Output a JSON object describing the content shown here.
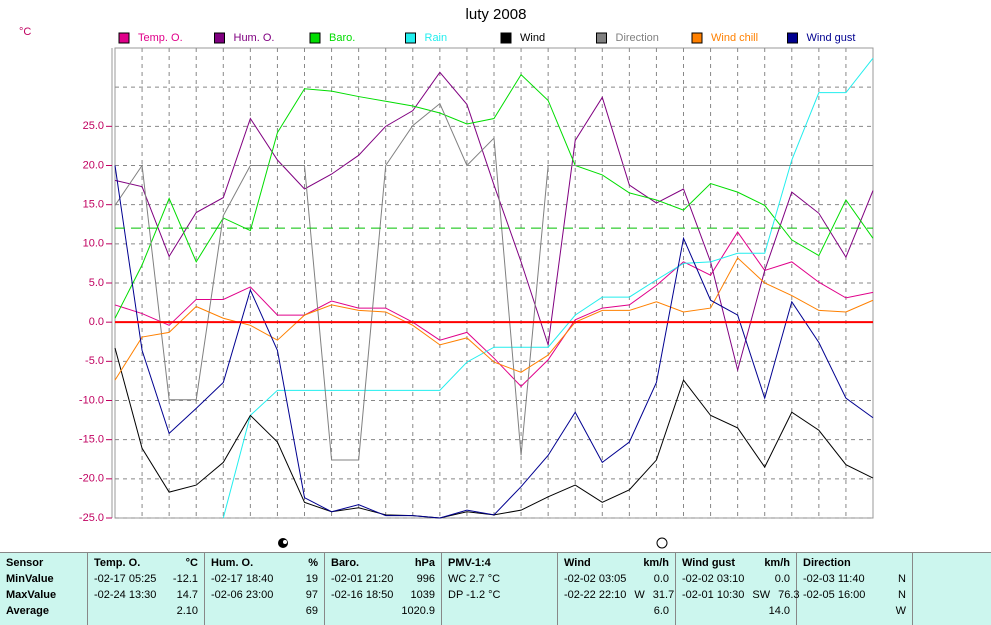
{
  "chart_data": {
    "type": "line",
    "title": "luty 2008",
    "y_unit": "°C",
    "categories": [
      null,
      null,
      null,
      null,
      null,
      null,
      null,
      null,
      null,
      null,
      null,
      null,
      null,
      null,
      null,
      null,
      null,
      null,
      null,
      null,
      null,
      null,
      null,
      null,
      null,
      null,
      null,
      null,
      null
    ],
    "ylim": [
      -25,
      35
    ],
    "yticks": [
      {
        "value": -25,
        "label": "-25.0"
      },
      {
        "value": -20,
        "label": "-20.0"
      },
      {
        "value": -15,
        "label": "-15.0"
      },
      {
        "value": -10,
        "label": "-10.0"
      },
      {
        "value": -5,
        "label": "-5.0"
      },
      {
        "value": 0,
        "label": "0.0"
      },
      {
        "value": 5,
        "label": "5.0"
      },
      {
        "value": 10,
        "label": "10.0"
      },
      {
        "value": 15,
        "label": "15.0"
      },
      {
        "value": 20,
        "label": "20.0"
      },
      {
        "value": 25,
        "label": "25.0"
      }
    ],
    "ygrid": [
      30
    ],
    "grid": true,
    "reference_lines": [
      {
        "value": 0,
        "color": "#ff0000",
        "style": "solid"
      },
      {
        "value": 12,
        "color": "#00c000",
        "style": "dashed"
      }
    ],
    "series": [
      {
        "name": "Temp. O.",
        "color": "#e0008a",
        "values": [
          2.2,
          1.1,
          -0.4,
          2.9,
          2.9,
          4.5,
          0.9,
          0.9,
          2.7,
          1.8,
          1.8,
          0.0,
          -2.3,
          -1.3,
          -4.6,
          -8.2,
          -4.8,
          0.3,
          1.8,
          2.2,
          4.7,
          7.7,
          6.0,
          11.5,
          6.6,
          7.7,
          5.1,
          3.1,
          3.8
        ]
      },
      {
        "name": "Hum. O.",
        "color": "#800080",
        "values": [
          18.1,
          17.3,
          8.4,
          14.0,
          15.9,
          26.0,
          20.7,
          17.0,
          18.9,
          21.3,
          25.0,
          27.0,
          31.9,
          27.8,
          17.5,
          7.7,
          -2.9,
          23.2,
          28.7,
          17.5,
          15.2,
          17.0,
          7.7,
          -6.1,
          6.6,
          16.6,
          13.9,
          8.3,
          16.8
        ]
      },
      {
        "name": "Baro.",
        "color": "#00dd00",
        "values": [
          0.5,
          7.3,
          15.8,
          7.7,
          13.3,
          11.7,
          24.2,
          29.8,
          29.5,
          28.8,
          28.2,
          27.6,
          26.7,
          25.3,
          26.0,
          31.6,
          28.3,
          20.0,
          18.8,
          16.5,
          15.6,
          14.3,
          17.7,
          16.6,
          14.9,
          10.5,
          8.5,
          15.6,
          10.7
        ]
      },
      {
        "name": "Rain",
        "color": "#22eeee",
        "values": [
          null,
          null,
          null,
          null,
          -25,
          -11.9,
          -8.7,
          -8.7,
          -8.7,
          -8.7,
          -8.7,
          -8.7,
          -8.7,
          -5.1,
          -3.2,
          -3.2,
          -3.2,
          0.9,
          3.2,
          3.2,
          5.4,
          7.5,
          7.7,
          8.8,
          8.8,
          20.7,
          29.3,
          29.3,
          33.7
        ]
      },
      {
        "name": "Wind",
        "color": "#000000",
        "values": [
          -3.3,
          -16.1,
          -21.7,
          -20.8,
          -17.9,
          -11.9,
          -15.3,
          -23.0,
          -24.2,
          -23.7,
          -24.6,
          -24.7,
          -25.0,
          -24.2,
          -24.6,
          -24.0,
          -22.3,
          -20.8,
          -23.0,
          -21.4,
          -17.6,
          -7.4,
          -11.9,
          -13.5,
          -18.5,
          -11.5,
          -13.8,
          -18.2,
          -19.9
        ]
      },
      {
        "name": "Direction",
        "color": "#808080",
        "values": [
          14.9,
          20.0,
          -9.9,
          -9.9,
          13.6,
          20.0,
          20.0,
          20.0,
          -17.6,
          -17.6,
          20.0,
          25.1,
          27.9,
          20.0,
          23.5,
          -17.0,
          20.0,
          20.0,
          20.0,
          20.0,
          20.0,
          20.0,
          20.0,
          20.0,
          20.0,
          20.0,
          20.0,
          20.0,
          20.0
        ]
      },
      {
        "name": "Wind chill",
        "color": "#ff8000",
        "values": [
          -7.4,
          -1.9,
          -1.3,
          2.0,
          0.5,
          -0.4,
          -2.3,
          0.9,
          2.2,
          1.5,
          1.3,
          -0.4,
          -2.9,
          -2.0,
          -5.1,
          -6.4,
          -4.2,
          0.0,
          1.5,
          1.5,
          2.6,
          1.3,
          1.8,
          8.2,
          5.0,
          3.4,
          1.5,
          1.3,
          2.8
        ]
      },
      {
        "name": "Wind gust",
        "color": "#000090",
        "values": [
          20.0,
          -3.6,
          -14.2,
          -11.0,
          -7.7,
          4.1,
          -3.6,
          -22.4,
          -24.2,
          -23.3,
          -24.7,
          -24.7,
          -25.0,
          -24.0,
          -24.6,
          -21.0,
          -17.0,
          -11.5,
          -17.9,
          -15.3,
          -7.7,
          10.7,
          2.8,
          0.9,
          -9.7,
          2.6,
          -2.6,
          -9.7,
          -12.2
        ]
      }
    ]
  },
  "table": {
    "row_labels": [
      "Sensor",
      "MinValue",
      "MaxValue",
      "Average"
    ],
    "columns": [
      {
        "name": "Temp. O.",
        "unit": "°C",
        "min": {
          "time": "-02-17 05:25",
          "value": "-12.1"
        },
        "max": {
          "time": "-02-24 13:30",
          "value": "14.7"
        },
        "average": "2.10"
      },
      {
        "name": "Hum. O.",
        "unit": "%",
        "min": {
          "time": "-02-17 18:40",
          "value": "19"
        },
        "max": {
          "time": "-02-06 23:00",
          "value": "97"
        },
        "average": "69"
      },
      {
        "name": "Baro.",
        "unit": "hPa",
        "min": {
          "time": "-02-01 21:20",
          "value": "996"
        },
        "max": {
          "time": "-02-16 18:50",
          "value": "1039"
        },
        "average": "1020.9"
      },
      {
        "name": "PMV-1:4",
        "min": {
          "time": "WC 2.7 °C"
        },
        "max": {
          "time": "DP -1.2 °C"
        }
      },
      {
        "name": "Wind",
        "unit": "km/h",
        "min": {
          "time": "-02-02 03:05",
          "value": "0.0"
        },
        "max": {
          "time": "-02-22 22:10",
          "dir": "W",
          "value": "31.7"
        },
        "average": "6.0"
      },
      {
        "name": "Wind gust",
        "unit": "km/h",
        "min": {
          "time": "-02-02 03:10",
          "value": "0.0"
        },
        "max": {
          "time": "-02-01 10:30",
          "dir": "SW",
          "value": "76.3"
        },
        "average": "14.0"
      },
      {
        "name": "Direction",
        "min": {
          "time": "-02-03 11:40",
          "dir": "N"
        },
        "max": {
          "time": "-02-05 16:00",
          "dir": "N"
        },
        "average": "W"
      }
    ]
  }
}
